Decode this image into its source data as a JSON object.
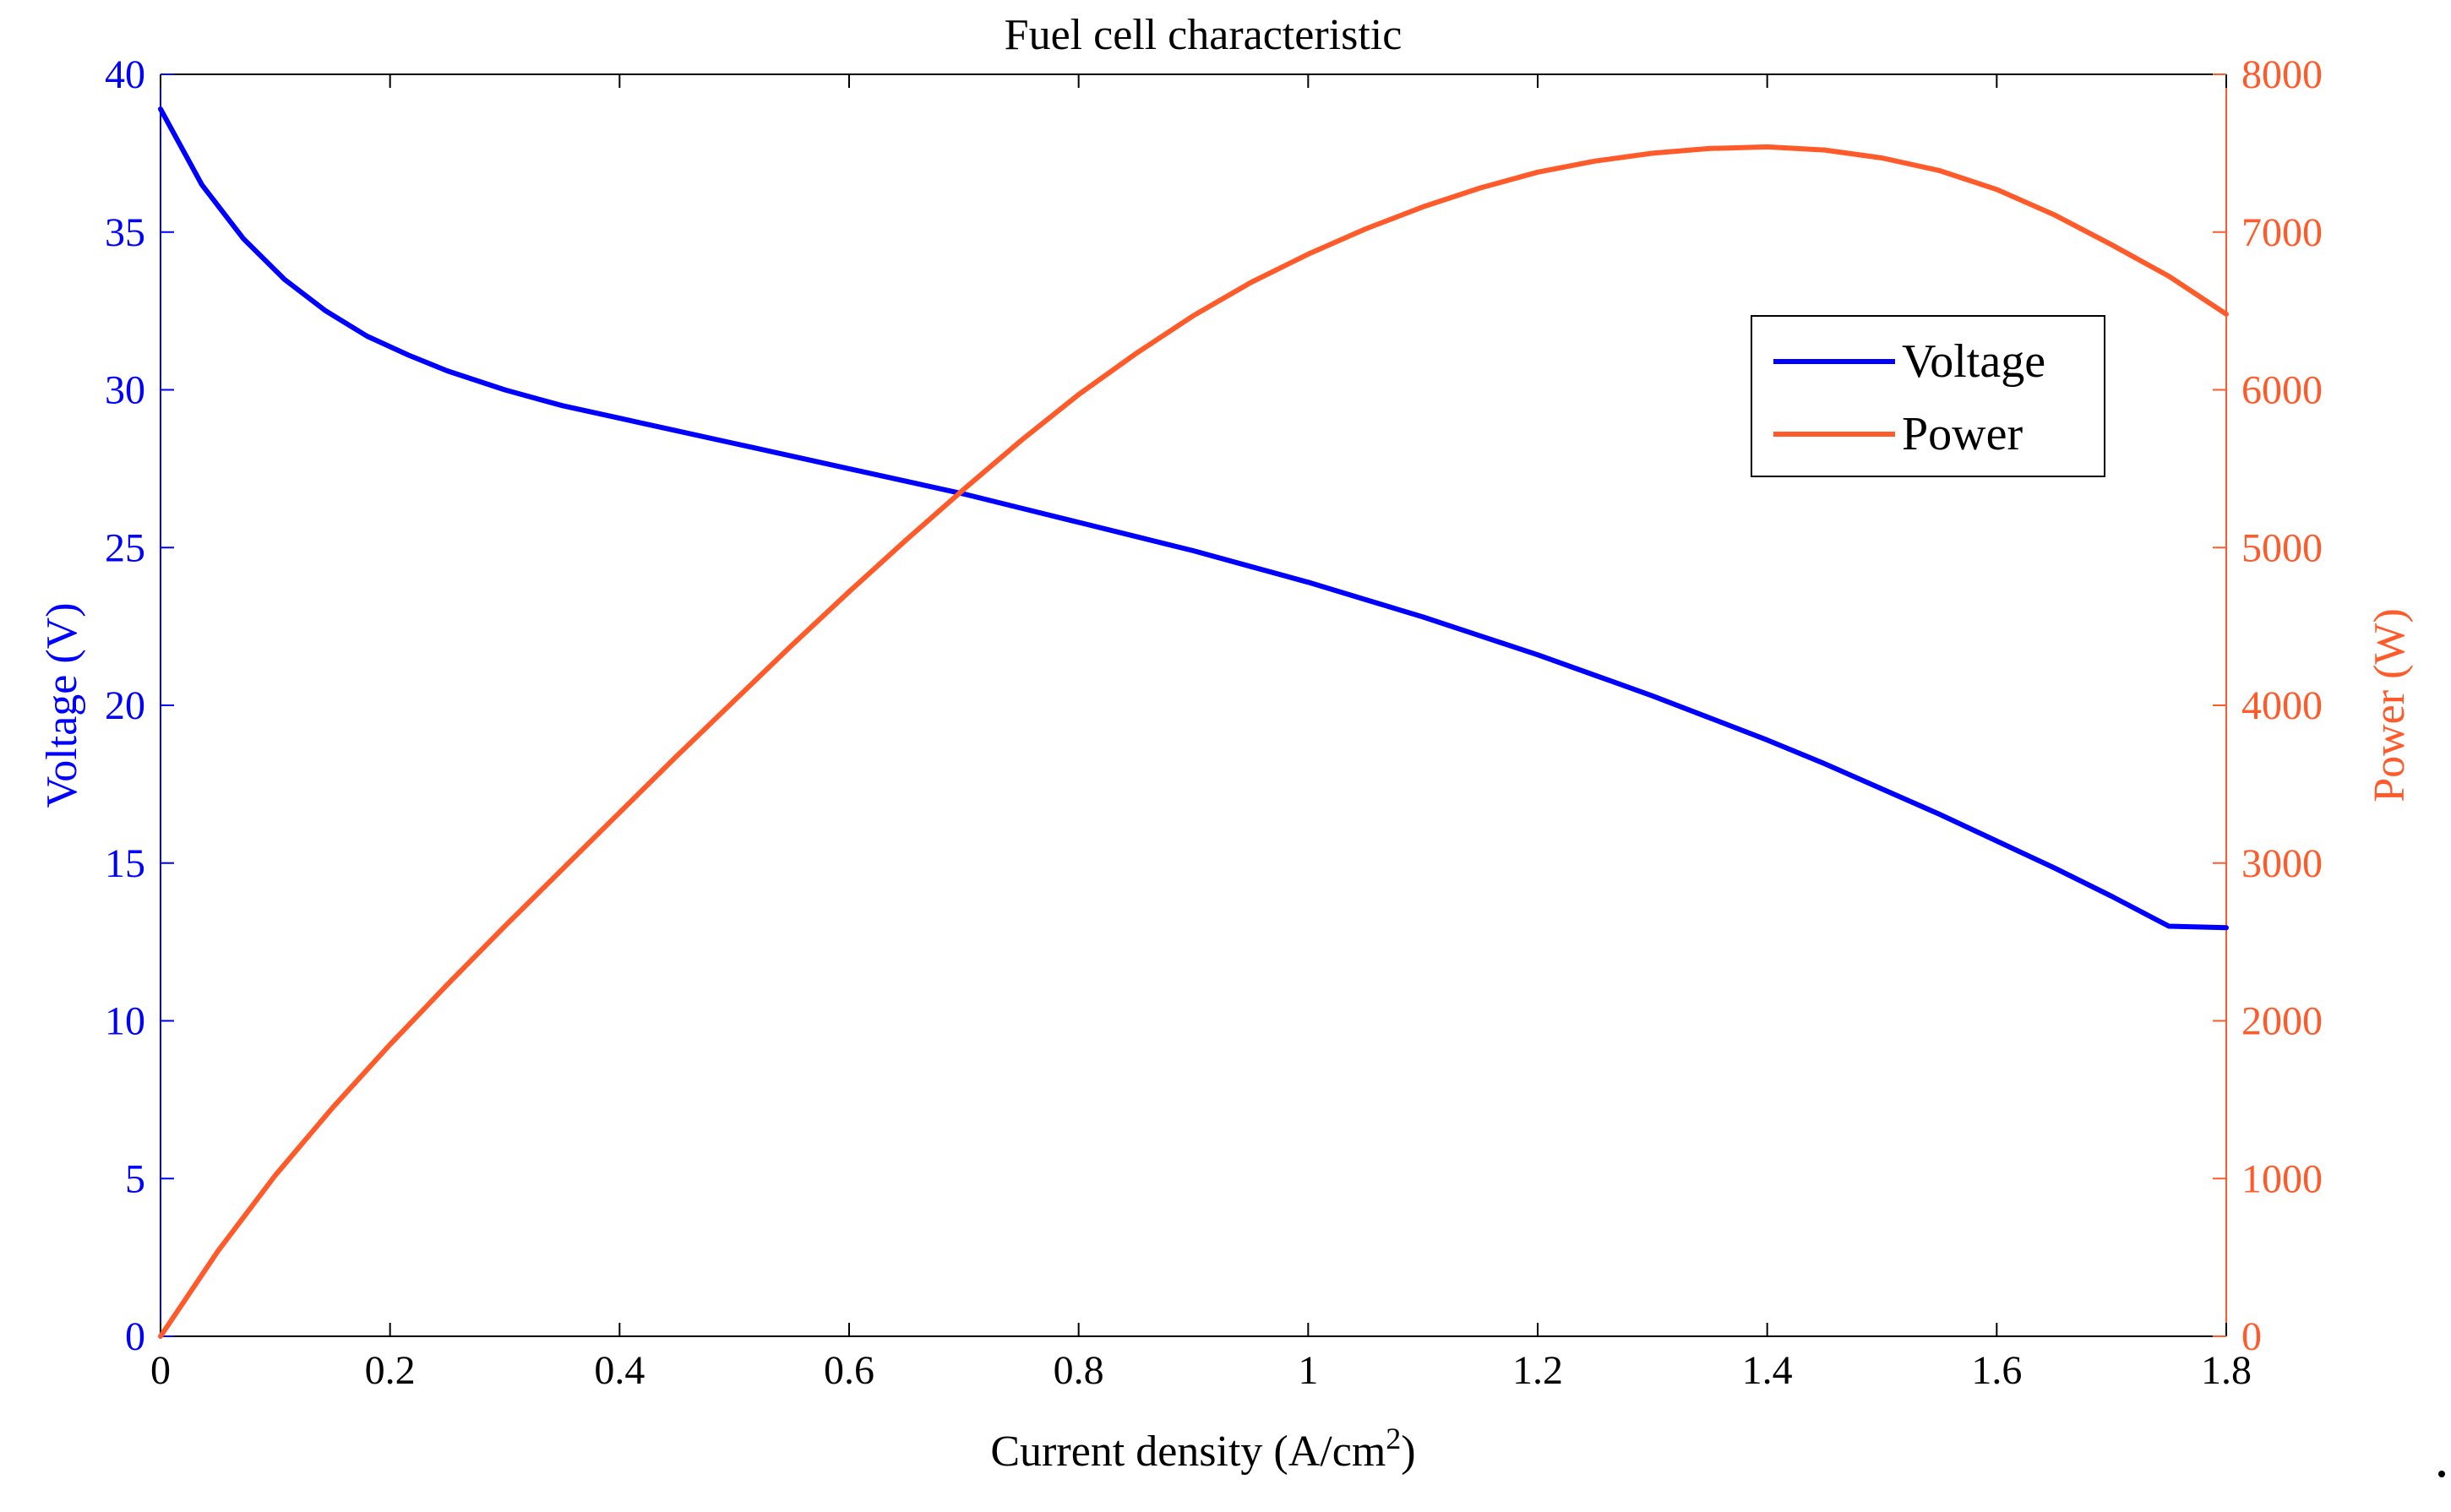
{
  "chart_data": {
    "type": "line",
    "title": "Fuel cell characteristic",
    "xlabel": "Current density (A/cm",
    "xlabel_superscript": "2",
    "xlabel_suffix": ")",
    "ylabel_left": "Voltage (V)",
    "ylabel_right": "Power (W)",
    "xlim": [
      0,
      1.8
    ],
    "ylim_left": [
      0,
      40
    ],
    "ylim_right": [
      0,
      8000
    ],
    "x_ticks": [
      "0",
      "0.2",
      "0.4",
      "0.6",
      "0.8",
      "1",
      "1.2",
      "1.4",
      "1.6",
      "1.8"
    ],
    "y_left_ticks": [
      "0",
      "5",
      "10",
      "15",
      "20",
      "25",
      "30",
      "35",
      "40"
    ],
    "y_right_ticks": [
      "0",
      "1000",
      "2000",
      "3000",
      "4000",
      "5000",
      "6000",
      "7000",
      "8000"
    ],
    "legend_location": "upper-right",
    "colors": {
      "voltage": "#0000ff",
      "power": "#ff5a2a",
      "axis": "#000000"
    },
    "series": [
      {
        "name": "Voltage",
        "axis": "left",
        "color": "#0000ff",
        "x": [
          0,
          0.036,
          0.072,
          0.108,
          0.144,
          0.18,
          0.216,
          0.25,
          0.3,
          0.35,
          0.4,
          0.45,
          0.5,
          0.55,
          0.6,
          0.65,
          0.7,
          0.75,
          0.8,
          0.85,
          0.9,
          0.95,
          1.0,
          1.05,
          1.1,
          1.15,
          1.2,
          1.25,
          1.3,
          1.35,
          1.4,
          1.45,
          1.5,
          1.55,
          1.6,
          1.65,
          1.7,
          1.75,
          1.8
        ],
        "values": [
          38.9,
          36.5,
          34.8,
          33.5,
          32.5,
          31.7,
          31.1,
          30.6,
          30.0,
          29.5,
          29.1,
          28.7,
          28.3,
          27.9,
          27.5,
          27.1,
          26.7,
          26.25,
          25.8,
          25.35,
          24.9,
          24.4,
          23.9,
          23.35,
          22.8,
          22.2,
          21.6,
          20.95,
          20.3,
          19.6,
          18.9,
          18.15,
          17.35,
          16.55,
          15.7,
          14.85,
          13.95,
          13.0,
          12.95
        ]
      },
      {
        "name": "Power",
        "axis": "right",
        "color": "#ff5a2a",
        "x": [
          0,
          0.05,
          0.1,
          0.15,
          0.2,
          0.25,
          0.3,
          0.35,
          0.4,
          0.45,
          0.5,
          0.55,
          0.6,
          0.65,
          0.7,
          0.75,
          0.8,
          0.85,
          0.9,
          0.95,
          1.0,
          1.05,
          1.1,
          1.15,
          1.2,
          1.25,
          1.3,
          1.35,
          1.4,
          1.45,
          1.5,
          1.55,
          1.6,
          1.65,
          1.7,
          1.75,
          1.8
        ],
        "values": [
          0,
          540,
          1020,
          1450,
          1850,
          2230,
          2600,
          2960,
          3320,
          3680,
          4030,
          4380,
          4720,
          5050,
          5370,
          5680,
          5970,
          6230,
          6470,
          6680,
          6860,
          7020,
          7160,
          7280,
          7380,
          7450,
          7500,
          7530,
          7540,
          7520,
          7470,
          7390,
          7270,
          7110,
          6920,
          6720,
          6480
        ]
      }
    ]
  }
}
